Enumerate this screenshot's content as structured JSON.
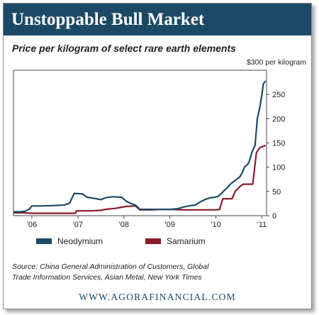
{
  "header": {
    "title": "Unstoppable Bull Market"
  },
  "subtitle": "Price per kilogram of select rare earth elements",
  "source": "Source: China General Administration of Customers, Global Trade Information Services, Asian Metal, New York Times",
  "footer": "WWW.AGORAFINANCIAL.COM",
  "colors": {
    "header": "#1c4a66",
    "neodymium": "#1c4a66",
    "samarium": "#8b1a2a"
  },
  "chart_data": {
    "type": "line",
    "y_unit_label": "$300 per kilogram",
    "x_ticks": [
      "'06",
      "'07",
      "'08",
      "'09",
      "'10",
      "'11"
    ],
    "y_ticks": [
      "0",
      "50",
      "100",
      "150",
      "200",
      "250"
    ],
    "xlim": [
      2005.6,
      2011.1
    ],
    "ylim": [
      0,
      300
    ],
    "legend_position": "bottom",
    "series": [
      {
        "name": "Neodymium",
        "color": "#1c4a66",
        "points": [
          [
            2005.6,
            8
          ],
          [
            2005.75,
            8
          ],
          [
            2005.85,
            9
          ],
          [
            2005.95,
            14
          ],
          [
            2006.0,
            20
          ],
          [
            2006.2,
            20
          ],
          [
            2006.5,
            21
          ],
          [
            2006.7,
            22
          ],
          [
            2006.82,
            26
          ],
          [
            2006.92,
            46
          ],
          [
            2007.1,
            45
          ],
          [
            2007.2,
            38
          ],
          [
            2007.4,
            35
          ],
          [
            2007.5,
            33
          ],
          [
            2007.6,
            37
          ],
          [
            2007.75,
            39
          ],
          [
            2007.95,
            38
          ],
          [
            2008.05,
            30
          ],
          [
            2008.15,
            25
          ],
          [
            2008.25,
            22
          ],
          [
            2008.35,
            13
          ],
          [
            2008.6,
            13
          ],
          [
            2008.85,
            13
          ],
          [
            2009.0,
            13
          ],
          [
            2009.15,
            14
          ],
          [
            2009.3,
            18
          ],
          [
            2009.4,
            20
          ],
          [
            2009.55,
            22
          ],
          [
            2009.65,
            28
          ],
          [
            2009.78,
            34
          ],
          [
            2009.88,
            37
          ],
          [
            2009.98,
            38
          ],
          [
            2010.05,
            40
          ],
          [
            2010.12,
            46
          ],
          [
            2010.18,
            52
          ],
          [
            2010.25,
            58
          ],
          [
            2010.3,
            64
          ],
          [
            2010.38,
            70
          ],
          [
            2010.45,
            75
          ],
          [
            2010.52,
            80
          ],
          [
            2010.58,
            90
          ],
          [
            2010.62,
            100
          ],
          [
            2010.68,
            105
          ],
          [
            2010.72,
            110
          ],
          [
            2010.78,
            130
          ],
          [
            2010.85,
            145
          ],
          [
            2010.9,
            200
          ],
          [
            2010.95,
            222
          ],
          [
            2011.0,
            250
          ],
          [
            2011.03,
            272
          ],
          [
            2011.08,
            278
          ]
        ]
      },
      {
        "name": "Samarium",
        "color": "#8b1a2a",
        "points": [
          [
            2005.6,
            6
          ],
          [
            2005.8,
            6
          ],
          [
            2006.0,
            5
          ],
          [
            2006.5,
            5
          ],
          [
            2006.95,
            5
          ],
          [
            2006.97,
            10
          ],
          [
            2007.3,
            10
          ],
          [
            2007.5,
            11
          ],
          [
            2007.6,
            13
          ],
          [
            2007.8,
            15
          ],
          [
            2008.05,
            19
          ],
          [
            2008.25,
            20
          ],
          [
            2008.35,
            12
          ],
          [
            2008.6,
            12
          ],
          [
            2008.8,
            13
          ],
          [
            2009.0,
            13
          ],
          [
            2009.3,
            12
          ],
          [
            2009.6,
            12
          ],
          [
            2010.0,
            12
          ],
          [
            2010.08,
            13
          ],
          [
            2010.15,
            35
          ],
          [
            2010.35,
            35
          ],
          [
            2010.42,
            50
          ],
          [
            2010.52,
            60
          ],
          [
            2010.6,
            65
          ],
          [
            2010.8,
            65
          ],
          [
            2010.88,
            130
          ],
          [
            2010.95,
            140
          ],
          [
            2011.0,
            142
          ],
          [
            2011.08,
            145
          ]
        ]
      }
    ]
  }
}
